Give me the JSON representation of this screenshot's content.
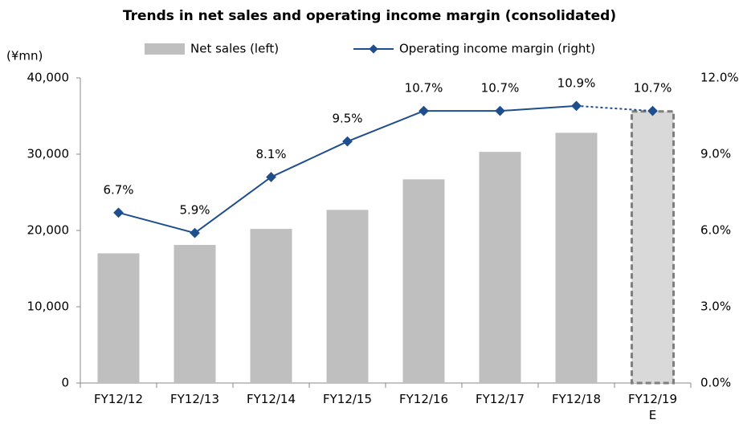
{
  "chart_data": {
    "type": "bar_line",
    "title": "Trends in net sales and operating income margin (consolidated)",
    "y_unit_label": "(¥mn)",
    "categories": [
      "FY12/12",
      "FY12/13",
      "FY12/14",
      "FY12/15",
      "FY12/16",
      "FY12/17",
      "FY12/18",
      "FY12/19\nE"
    ],
    "series": [
      {
        "name": "Net sales (left)",
        "type": "bar",
        "axis": "y",
        "color": "#bfbfbf",
        "estimate_color": "#d9d9d9",
        "values": [
          17000,
          18100,
          20200,
          22700,
          26700,
          30300,
          32800,
          35600
        ]
      },
      {
        "name": "Operating income margin (right)",
        "type": "line",
        "axis": "y2",
        "color": "#1f4e8c",
        "values": [
          6.7,
          5.9,
          8.1,
          9.5,
          10.7,
          10.7,
          10.9,
          10.7
        ],
        "value_labels": [
          "6.7%",
          "5.9%",
          "8.1%",
          "9.5%",
          "10.7%",
          "10.7%",
          "10.9%",
          "10.7%"
        ]
      }
    ],
    "estimate_index": 7,
    "ylim": [
      0,
      40000
    ],
    "yticks": [
      0,
      {
        "value": 10000,
        "label": "10,000"
      },
      {
        "value": 20000,
        "label": "20,000"
      },
      {
        "value": 30000,
        "label": "30,000"
      },
      {
        "value": 40000,
        "label": "40,000"
      }
    ],
    "y2lim": [
      0,
      12
    ],
    "y2ticks": [
      {
        "value": 0,
        "label": "0.0%"
      },
      {
        "value": 3,
        "label": "3.0%"
      },
      {
        "value": 6,
        "label": "6.0%"
      },
      {
        "value": 9,
        "label": "9.0%"
      },
      {
        "value": 12,
        "label": "12.0%"
      }
    ],
    "legend": "top",
    "grid": false
  }
}
